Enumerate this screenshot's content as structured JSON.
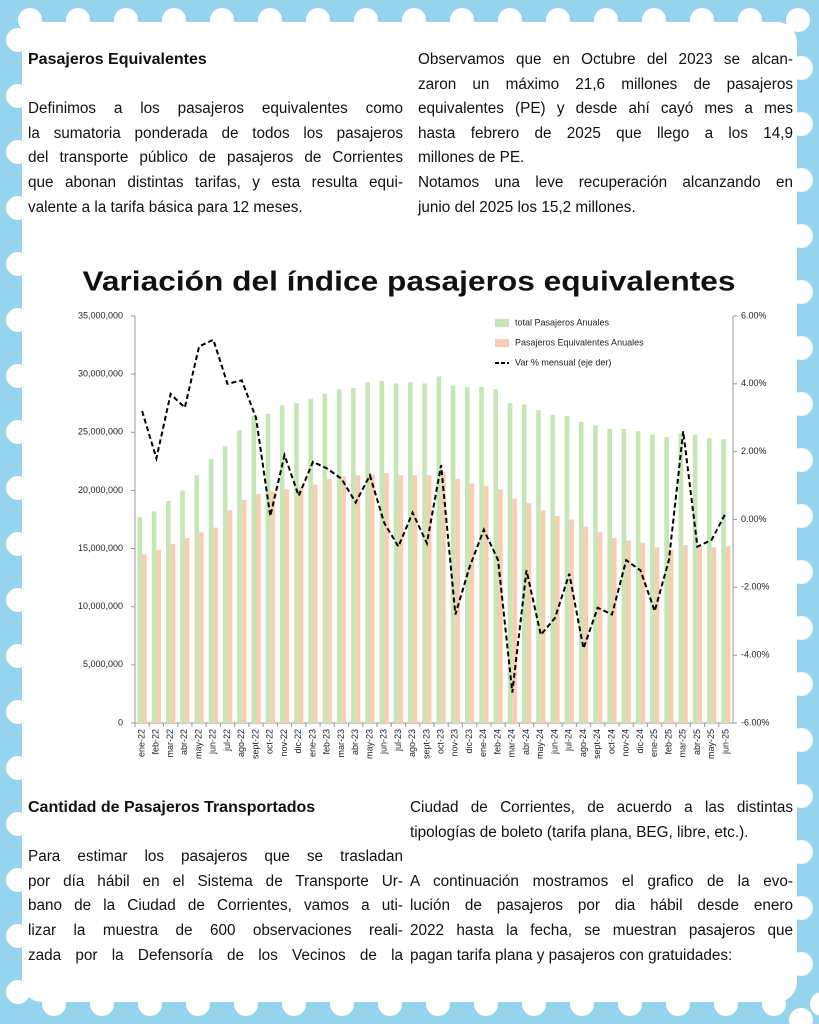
{
  "top_left": {
    "heading": "Pasajeros Equivalentes",
    "lines": [
      "Definimos a los pasajeros equivalentes como",
      "la sumatoria ponderada de todos los pasajeros",
      "del transporte público de pasajeros de Corrientes",
      "que abonan distintas tarifas, y esta resulta equi-",
      "valente a la tarifa básica para 12 meses."
    ]
  },
  "top_right": {
    "paragraphs": [
      [
        "Observamos que en Octubre del 2023 se alcan-",
        "zaron un máximo 21,6 millones de pasajeros",
        "equivalentes (PE) y desde ahí cayó mes a mes",
        "hasta febrero de 2025 que llego a los 14,9",
        "millones de PE."
      ],
      [
        "Notamos una leve recuperación alcanzando en",
        "junio del 2025 los 15,2 millones."
      ]
    ]
  },
  "bottom_left": {
    "heading": "Cantidad de Pasajeros Transportados",
    "lines": [
      "Para estimar los pasajeros que se trasladan",
      "por día hábil en el Sistema de Transporte Ur-",
      "bano de la Ciudad de Corrientes, vamos a uti-",
      "lizar la muestra de 600 observaciones reali-",
      "zada por la Defensoría de los Vecinos de la"
    ]
  },
  "bottom_right": {
    "paragraphs": [
      [
        "Ciudad de Corrientes, de acuerdo a las distintas",
        "tipologías de boleto (tarifa plana, BEG, libre, etc.)."
      ],
      [
        "A continuación mostramos el grafico de la evo-",
        "lución de pasajeros por dia hábil desde enero",
        "2022 hasta la fecha, se muestran pasajeros que",
        "pagan tarifa plana y pasajeros con gratuidades:"
      ]
    ]
  },
  "chart_data": {
    "type": "bar",
    "title": "Variación del índice pasajeros equivalentes",
    "categories": [
      "ene-22",
      "feb-22",
      "mar-22",
      "abr-22",
      "may-22",
      "jun-22",
      "jul-22",
      "ago-22",
      "sept-22",
      "oct-22",
      "nov-22",
      "dic-22",
      "ene-23",
      "feb-23",
      "mar-23",
      "abr-23",
      "may-23",
      "jun-23",
      "jul-23",
      "ago-23",
      "sept-23",
      "oct-23",
      "nov-23",
      "dic-23",
      "ene-24",
      "feb-24",
      "mar-24",
      "abr-24",
      "may-24",
      "jun-24",
      "jul-24",
      "ago-24",
      "sept-24",
      "oct-24",
      "nov-24",
      "dic-24",
      "ene-25",
      "feb-25",
      "mar-25",
      "abr-25",
      "may-25",
      "jun-25"
    ],
    "series": [
      {
        "name": "total Pasajeros Anuales",
        "color": "#c6e6b5",
        "values": [
          17700000,
          18200000,
          19100000,
          20000000,
          21300000,
          22700000,
          23800000,
          25200000,
          26400000,
          26600000,
          27300000,
          27500000,
          27900000,
          28300000,
          28700000,
          28800000,
          29300000,
          29400000,
          29200000,
          29300000,
          29200000,
          29800000,
          29000000,
          28900000,
          28900000,
          28700000,
          27500000,
          27400000,
          26900000,
          26500000,
          26400000,
          25900000,
          25600000,
          25300000,
          25300000,
          25100000,
          24800000,
          24600000,
          24900000,
          24800000,
          24500000,
          24400000
        ]
      },
      {
        "name": "Pasajeros Equivalentes Anuales",
        "color": "#f8cdb0",
        "values": [
          14500000,
          14900000,
          15400000,
          15900000,
          16400000,
          16800000,
          18300000,
          19200000,
          19700000,
          19900000,
          20100000,
          20300000,
          20500000,
          21000000,
          21200000,
          21300000,
          21400000,
          21500000,
          21300000,
          21300000,
          21300000,
          21600000,
          21000000,
          20600000,
          20400000,
          20100000,
          19300000,
          18900000,
          18300000,
          17800000,
          17500000,
          16900000,
          16400000,
          15900000,
          15700000,
          15500000,
          15100000,
          14900000,
          15300000,
          15200000,
          15100000,
          15200000
        ]
      },
      {
        "name": "Var % mensual (eje der)",
        "color": "#000000",
        "type": "line",
        "dashed": true,
        "axis": "y2",
        "values": [
          3.2,
          1.8,
          3.7,
          3.3,
          5.1,
          5.3,
          4.0,
          4.1,
          3.0,
          0.1,
          1.9,
          0.7,
          1.7,
          1.5,
          1.2,
          0.5,
          1.3,
          -0.1,
          -0.8,
          0.2,
          -0.7,
          1.6,
          -2.8,
          -1.4,
          -0.3,
          -1.2,
          -5.1,
          -1.5,
          -3.4,
          -2.9,
          -1.6,
          -3.8,
          -2.6,
          -2.8,
          -1.2,
          -1.5,
          -2.7,
          -1.2,
          2.6,
          -0.8,
          -0.6,
          0.2
        ]
      }
    ],
    "ylim": [
      0,
      35000000
    ],
    "yticks": [
      0,
      {
        "value": 5000000,
        "label": "5,000,000"
      },
      {
        "value": 10000000,
        "label": "10,000,000"
      },
      {
        "value": 15000000,
        "label": "15,000,000"
      },
      {
        "value": 20000000,
        "label": "20,000,000"
      },
      {
        "value": 25000000,
        "label": "25,000,000"
      },
      {
        "value": 30000000,
        "label": "30,000,000"
      },
      {
        "value": 35000000,
        "label": "35,000,000"
      }
    ],
    "y2lim": [
      -6,
      6
    ],
    "y2ticks": [
      {
        "value": -6,
        "label": "-6.00%"
      },
      {
        "value": -4,
        "label": "-4.00%"
      },
      {
        "value": -2,
        "label": "-2.00%"
      },
      {
        "value": 0,
        "label": "0.00%"
      },
      {
        "value": 2,
        "label": "2.00%"
      },
      {
        "value": 4,
        "label": "4.00%"
      },
      {
        "value": 6,
        "label": "6.00%"
      }
    ],
    "grid": false,
    "legend": "top-right"
  }
}
